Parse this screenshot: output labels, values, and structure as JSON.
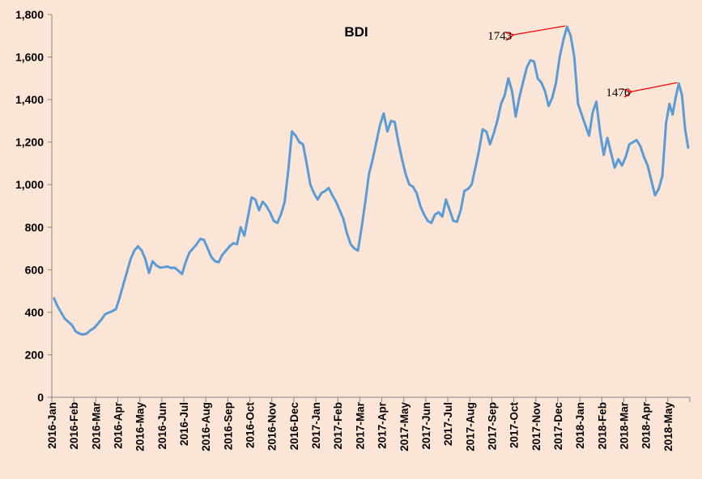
{
  "chart_data": {
    "type": "line",
    "title": "BDI",
    "xlabel": "",
    "ylabel": "",
    "ylim": [
      0,
      1800
    ],
    "yticks": [
      0,
      200,
      400,
      600,
      800,
      1000,
      1200,
      1400,
      1600,
      1800
    ],
    "ytick_labels": [
      "0",
      "200",
      "400",
      "600",
      "800",
      "1,000",
      "1,200",
      "1,400",
      "1,600",
      "1,800"
    ],
    "x_categories": [
      "2016-Jan",
      "2016-Feb",
      "2016-Mar",
      "2016-Apr",
      "2016-May",
      "2016-Jun",
      "2016-Jul",
      "2016-Aug",
      "2016-Sep",
      "2016-Oct",
      "2016-Nov",
      "2016-Dec",
      "2017-Jan",
      "2017-Feb",
      "2017-Mar",
      "2017-Apr",
      "2017-May",
      "2017-Jun",
      "2017-Jul",
      "2017-Aug",
      "2017-Sep",
      "2017-Oct",
      "2017-Nov",
      "2017-Dec",
      "2018-Jan",
      "2018-Feb",
      "2018-Mar",
      "2018-Apr",
      "2018-May"
    ],
    "grid": false,
    "legend": "none",
    "line_color": "#5B9BD5",
    "annotation_color": "#FF0000",
    "series": [
      {
        "values": [
          [
            "2016-Jan",
            470
          ],
          [
            "2016-Jan",
            430
          ],
          [
            "2016-Jan",
            400
          ],
          [
            "2016-Jan",
            370
          ],
          [
            "2016-Jan",
            355
          ],
          [
            "2016-Jan",
            340
          ],
          [
            "2016-Feb",
            310
          ],
          [
            "2016-Feb",
            300
          ],
          [
            "2016-Feb",
            295
          ],
          [
            "2016-Feb",
            300
          ],
          [
            "2016-Feb",
            315
          ],
          [
            "2016-Feb",
            325
          ],
          [
            "2016-Mar",
            345
          ],
          [
            "2016-Mar",
            365
          ],
          [
            "2016-Mar",
            390
          ],
          [
            "2016-Mar",
            398
          ],
          [
            "2016-Mar",
            405
          ],
          [
            "2016-Mar",
            415
          ],
          [
            "2016-Apr",
            470
          ],
          [
            "2016-Apr",
            530
          ],
          [
            "2016-Apr",
            590
          ],
          [
            "2016-Apr",
            650
          ],
          [
            "2016-Apr",
            690
          ],
          [
            "2016-Apr",
            710
          ],
          [
            "2016-May",
            690
          ],
          [
            "2016-May",
            650
          ],
          [
            "2016-May",
            585
          ],
          [
            "2016-May",
            640
          ],
          [
            "2016-May",
            620
          ],
          [
            "2016-May",
            610
          ],
          [
            "2016-Jun",
            612
          ],
          [
            "2016-Jun",
            615
          ],
          [
            "2016-Jun",
            608
          ],
          [
            "2016-Jun",
            610
          ],
          [
            "2016-Jun",
            595
          ],
          [
            "2016-Jun",
            580
          ],
          [
            "2016-Jul",
            635
          ],
          [
            "2016-Jul",
            680
          ],
          [
            "2016-Jul",
            700
          ],
          [
            "2016-Jul",
            720
          ],
          [
            "2016-Jul",
            745
          ],
          [
            "2016-Jul",
            740
          ],
          [
            "2016-Aug",
            700
          ],
          [
            "2016-Aug",
            660
          ],
          [
            "2016-Aug",
            640
          ],
          [
            "2016-Aug",
            635
          ],
          [
            "2016-Aug",
            670
          ],
          [
            "2016-Aug",
            690
          ],
          [
            "2016-Sep",
            710
          ],
          [
            "2016-Sep",
            725
          ],
          [
            "2016-Sep",
            720
          ],
          [
            "2016-Sep",
            800
          ],
          [
            "2016-Sep",
            760
          ],
          [
            "2016-Sep",
            850
          ],
          [
            "2016-Oct",
            940
          ],
          [
            "2016-Oct",
            930
          ],
          [
            "2016-Oct",
            880
          ],
          [
            "2016-Oct",
            920
          ],
          [
            "2016-Oct",
            900
          ],
          [
            "2016-Oct",
            870
          ],
          [
            "2016-Nov",
            830
          ],
          [
            "2016-Nov",
            820
          ],
          [
            "2016-Nov",
            860
          ],
          [
            "2016-Nov",
            920
          ],
          [
            "2016-Nov",
            1070
          ],
          [
            "2016-Nov",
            1250
          ],
          [
            "2016-Dec",
            1230
          ],
          [
            "2016-Dec",
            1200
          ],
          [
            "2016-Dec",
            1190
          ],
          [
            "2016-Dec",
            1100
          ],
          [
            "2016-Dec",
            1000
          ],
          [
            "2016-Dec",
            960
          ],
          [
            "2017-Jan",
            930
          ],
          [
            "2017-Jan",
            960
          ],
          [
            "2017-Jan",
            970
          ],
          [
            "2017-Jan",
            985
          ],
          [
            "2017-Jan",
            950
          ],
          [
            "2017-Jan",
            920
          ],
          [
            "2017-Feb",
            880
          ],
          [
            "2017-Feb",
            840
          ],
          [
            "2017-Feb",
            770
          ],
          [
            "2017-Feb",
            720
          ],
          [
            "2017-Feb",
            700
          ],
          [
            "2017-Feb",
            690
          ],
          [
            "2017-Mar",
            800
          ],
          [
            "2017-Mar",
            920
          ],
          [
            "2017-Mar",
            1050
          ],
          [
            "2017-Mar",
            1120
          ],
          [
            "2017-Mar",
            1200
          ],
          [
            "2017-Mar",
            1280
          ],
          [
            "2017-Apr",
            1335
          ],
          [
            "2017-Apr",
            1250
          ],
          [
            "2017-Apr",
            1300
          ],
          [
            "2017-Apr",
            1295
          ],
          [
            "2017-Apr",
            1200
          ],
          [
            "2017-Apr",
            1120
          ],
          [
            "2017-May",
            1050
          ],
          [
            "2017-May",
            1000
          ],
          [
            "2017-May",
            990
          ],
          [
            "2017-May",
            960
          ],
          [
            "2017-May",
            900
          ],
          [
            "2017-May",
            860
          ],
          [
            "2017-Jun",
            830
          ],
          [
            "2017-Jun",
            820
          ],
          [
            "2017-Jun",
            860
          ],
          [
            "2017-Jun",
            870
          ],
          [
            "2017-Jun",
            850
          ],
          [
            "2017-Jun",
            930
          ],
          [
            "2017-Jul",
            880
          ],
          [
            "2017-Jul",
            830
          ],
          [
            "2017-Jul",
            825
          ],
          [
            "2017-Jul",
            880
          ],
          [
            "2017-Jul",
            970
          ],
          [
            "2017-Jul",
            980
          ],
          [
            "2017-Aug",
            1000
          ],
          [
            "2017-Aug",
            1080
          ],
          [
            "2017-Aug",
            1160
          ],
          [
            "2017-Aug",
            1260
          ],
          [
            "2017-Aug",
            1250
          ],
          [
            "2017-Aug",
            1190
          ],
          [
            "2017-Sep",
            1240
          ],
          [
            "2017-Sep",
            1300
          ],
          [
            "2017-Sep",
            1380
          ],
          [
            "2017-Sep",
            1420
          ],
          [
            "2017-Sep",
            1500
          ],
          [
            "2017-Sep",
            1440
          ],
          [
            "2017-Oct",
            1320
          ],
          [
            "2017-Oct",
            1410
          ],
          [
            "2017-Oct",
            1480
          ],
          [
            "2017-Oct",
            1550
          ],
          [
            "2017-Oct",
            1585
          ],
          [
            "2017-Oct",
            1580
          ],
          [
            "2017-Nov",
            1500
          ],
          [
            "2017-Nov",
            1480
          ],
          [
            "2017-Nov",
            1440
          ],
          [
            "2017-Nov",
            1370
          ],
          [
            "2017-Nov",
            1410
          ],
          [
            "2017-Nov",
            1480
          ],
          [
            "2017-Dec",
            1600
          ],
          [
            "2017-Dec",
            1680
          ],
          [
            "2017-Dec",
            1743
          ],
          [
            "2017-Dec",
            1700
          ],
          [
            "2017-Dec",
            1600
          ],
          [
            "2017-Dec",
            1380
          ],
          [
            "2018-Jan",
            1330
          ],
          [
            "2018-Jan",
            1280
          ],
          [
            "2018-Jan",
            1230
          ],
          [
            "2018-Jan",
            1340
          ],
          [
            "2018-Jan",
            1390
          ],
          [
            "2018-Jan",
            1250
          ],
          [
            "2018-Feb",
            1140
          ],
          [
            "2018-Feb",
            1220
          ],
          [
            "2018-Feb",
            1150
          ],
          [
            "2018-Feb",
            1080
          ],
          [
            "2018-Feb",
            1120
          ],
          [
            "2018-Feb",
            1090
          ],
          [
            "2018-Mar",
            1130
          ],
          [
            "2018-Mar",
            1190
          ],
          [
            "2018-Mar",
            1200
          ],
          [
            "2018-Mar",
            1210
          ],
          [
            "2018-Mar",
            1180
          ],
          [
            "2018-Mar",
            1130
          ],
          [
            "2018-Apr",
            1090
          ],
          [
            "2018-Apr",
            1020
          ],
          [
            "2018-Apr",
            950
          ],
          [
            "2018-Apr",
            980
          ],
          [
            "2018-Apr",
            1040
          ],
          [
            "2018-Apr",
            1290
          ],
          [
            "2018-May",
            1380
          ],
          [
            "2018-May",
            1330
          ],
          [
            "2018-May",
            1410
          ],
          [
            "2018-May",
            1476
          ],
          [
            "2018-May",
            1420
          ],
          [
            "2018-May",
            1260
          ],
          [
            "2018-May",
            1170
          ]
        ]
      }
    ],
    "annotations": [
      {
        "text": "1743",
        "target": [
          "2017-Dec",
          1743
        ]
      },
      {
        "text": "1476",
        "target": [
          "2018-May",
          1476
        ]
      }
    ]
  }
}
